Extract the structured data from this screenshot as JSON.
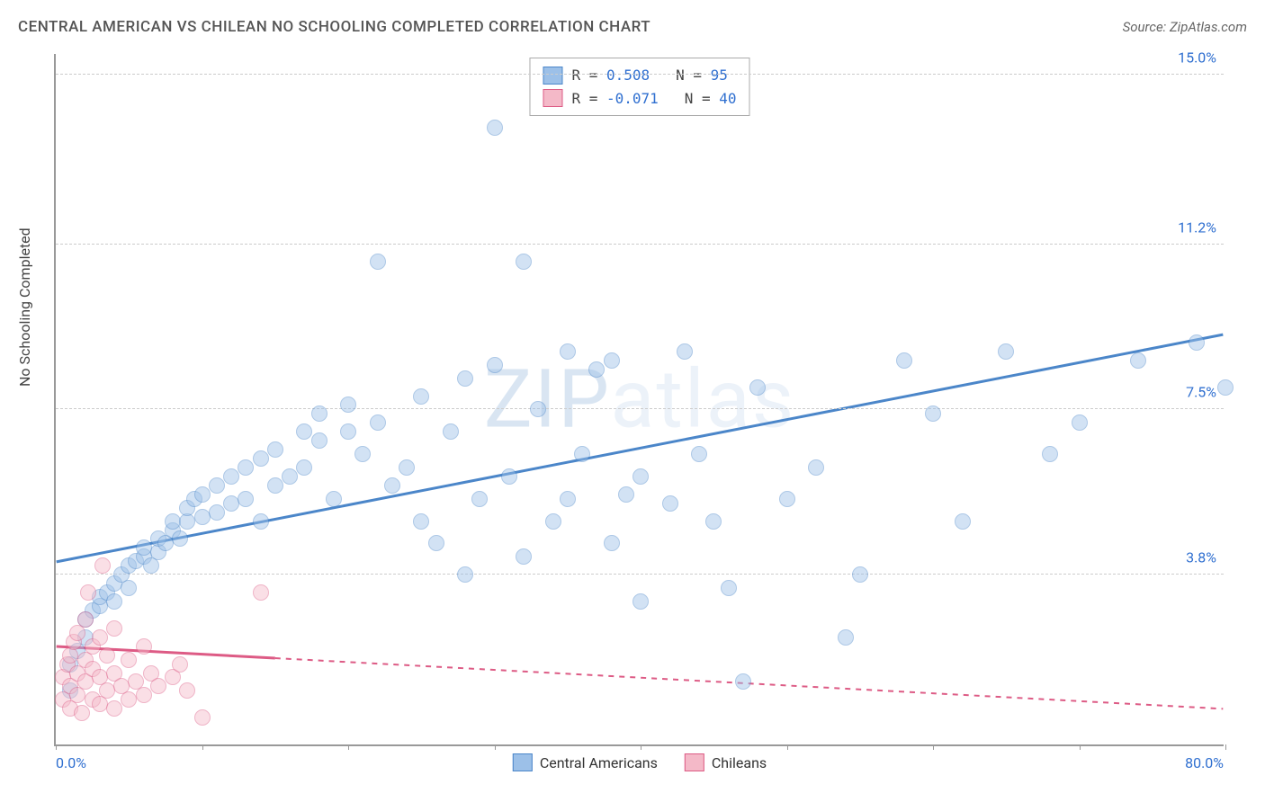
{
  "header": {
    "title": "CENTRAL AMERICAN VS CHILEAN NO SCHOOLING COMPLETED CORRELATION CHART",
    "source": "Source: ZipAtlas.com"
  },
  "chart": {
    "type": "scatter",
    "y_axis_label": "No Schooling Completed",
    "xlim": [
      0,
      80
    ],
    "ylim": [
      0,
      15.5
    ],
    "x_ticks": [
      0,
      10,
      20,
      30,
      40,
      50,
      60,
      70,
      80
    ],
    "y_ticks": [
      3.8,
      7.5,
      11.2,
      15.0
    ],
    "x_left_label": "0.0%",
    "x_right_label": "80.0%",
    "x_label_color": "#2f6fd0",
    "y_tick_color": "#2f6fd0",
    "grid_color": "#cccccc",
    "axis_color": "#999999",
    "background": "#ffffff",
    "marker_radius": 9,
    "marker_opacity": 0.45,
    "watermark_text": "ZIPatlas",
    "watermark_color_strong": "rgba(120,160,210,0.28)",
    "watermark_color_light": "rgba(120,160,210,0.14)",
    "series": [
      {
        "name": "Central Americans",
        "color_fill": "#9cc0e8",
        "color_stroke": "#4b86c9",
        "R": "0.508",
        "N": "95",
        "regression": {
          "x1": 0,
          "y1": 4.1,
          "x2": 80,
          "y2": 9.2,
          "solid_until_x": 80
        },
        "points": [
          [
            1,
            1.2
          ],
          [
            1,
            1.8
          ],
          [
            1.5,
            2.1
          ],
          [
            2,
            2.4
          ],
          [
            2,
            2.8
          ],
          [
            2.5,
            3.0
          ],
          [
            3,
            3.1
          ],
          [
            3,
            3.3
          ],
          [
            3.5,
            3.4
          ],
          [
            4,
            3.2
          ],
          [
            4,
            3.6
          ],
          [
            4.5,
            3.8
          ],
          [
            5,
            3.5
          ],
          [
            5,
            4.0
          ],
          [
            5.5,
            4.1
          ],
          [
            6,
            4.2
          ],
          [
            6,
            4.4
          ],
          [
            6.5,
            4.0
          ],
          [
            7,
            4.3
          ],
          [
            7,
            4.6
          ],
          [
            7.5,
            4.5
          ],
          [
            8,
            4.8
          ],
          [
            8,
            5.0
          ],
          [
            8.5,
            4.6
          ],
          [
            9,
            5.0
          ],
          [
            9,
            5.3
          ],
          [
            9.5,
            5.5
          ],
          [
            10,
            5.1
          ],
          [
            10,
            5.6
          ],
          [
            11,
            5.2
          ],
          [
            11,
            5.8
          ],
          [
            12,
            5.4
          ],
          [
            12,
            6.0
          ],
          [
            13,
            5.5
          ],
          [
            13,
            6.2
          ],
          [
            14,
            5.0
          ],
          [
            14,
            6.4
          ],
          [
            15,
            5.8
          ],
          [
            15,
            6.6
          ],
          [
            16,
            6.0
          ],
          [
            17,
            6.2
          ],
          [
            17,
            7.0
          ],
          [
            18,
            6.8
          ],
          [
            18,
            7.4
          ],
          [
            19,
            5.5
          ],
          [
            20,
            7.0
          ],
          [
            20,
            7.6
          ],
          [
            21,
            6.5
          ],
          [
            22,
            7.2
          ],
          [
            22,
            10.8
          ],
          [
            23,
            5.8
          ],
          [
            24,
            6.2
          ],
          [
            25,
            5.0
          ],
          [
            25,
            7.8
          ],
          [
            26,
            4.5
          ],
          [
            27,
            7.0
          ],
          [
            28,
            8.2
          ],
          [
            28,
            3.8
          ],
          [
            29,
            5.5
          ],
          [
            30,
            8.5
          ],
          [
            30,
            13.8
          ],
          [
            31,
            6.0
          ],
          [
            32,
            10.8
          ],
          [
            32,
            4.2
          ],
          [
            33,
            7.5
          ],
          [
            34,
            5.0
          ],
          [
            35,
            8.8
          ],
          [
            35,
            5.5
          ],
          [
            36,
            6.5
          ],
          [
            37,
            8.4
          ],
          [
            38,
            4.5
          ],
          [
            38,
            8.6
          ],
          [
            39,
            5.6
          ],
          [
            40,
            6.0
          ],
          [
            40,
            3.2
          ],
          [
            42,
            5.4
          ],
          [
            43,
            8.8
          ],
          [
            44,
            6.5
          ],
          [
            45,
            5.0
          ],
          [
            46,
            3.5
          ],
          [
            47,
            1.4
          ],
          [
            48,
            8.0
          ],
          [
            50,
            5.5
          ],
          [
            52,
            6.2
          ],
          [
            54,
            2.4
          ],
          [
            55,
            3.8
          ],
          [
            58,
            8.6
          ],
          [
            60,
            7.4
          ],
          [
            62,
            5.0
          ],
          [
            65,
            8.8
          ],
          [
            68,
            6.5
          ],
          [
            70,
            7.2
          ],
          [
            74,
            8.6
          ],
          [
            78,
            9.0
          ],
          [
            80,
            8.0
          ]
        ]
      },
      {
        "name": "Chileans",
        "color_fill": "#f4b9c8",
        "color_stroke": "#dd5b85",
        "R": "-0.071",
        "N": "40",
        "regression": {
          "x1": 0,
          "y1": 2.2,
          "x2": 80,
          "y2": 0.8,
          "solid_until_x": 15
        },
        "points": [
          [
            0.5,
            1.0
          ],
          [
            0.5,
            1.5
          ],
          [
            0.8,
            1.8
          ],
          [
            1,
            0.8
          ],
          [
            1,
            1.3
          ],
          [
            1,
            2.0
          ],
          [
            1.2,
            2.3
          ],
          [
            1.5,
            1.1
          ],
          [
            1.5,
            1.6
          ],
          [
            1.5,
            2.5
          ],
          [
            1.8,
            0.7
          ],
          [
            2,
            1.4
          ],
          [
            2,
            1.9
          ],
          [
            2,
            2.8
          ],
          [
            2.2,
            3.4
          ],
          [
            2.5,
            1.0
          ],
          [
            2.5,
            1.7
          ],
          [
            2.5,
            2.2
          ],
          [
            3,
            0.9
          ],
          [
            3,
            1.5
          ],
          [
            3,
            2.4
          ],
          [
            3.2,
            4.0
          ],
          [
            3.5,
            1.2
          ],
          [
            3.5,
            2.0
          ],
          [
            4,
            0.8
          ],
          [
            4,
            1.6
          ],
          [
            4,
            2.6
          ],
          [
            4.5,
            1.3
          ],
          [
            5,
            1.0
          ],
          [
            5,
            1.9
          ],
          [
            5.5,
            1.4
          ],
          [
            6,
            1.1
          ],
          [
            6,
            2.2
          ],
          [
            6.5,
            1.6
          ],
          [
            7,
            1.3
          ],
          [
            8,
            1.5
          ],
          [
            8.5,
            1.8
          ],
          [
            9,
            1.2
          ],
          [
            10,
            0.6
          ],
          [
            14,
            3.4
          ]
        ]
      }
    ],
    "legend_bottom": [
      {
        "label": "Central Americans",
        "fill": "#9cc0e8",
        "stroke": "#4b86c9"
      },
      {
        "label": "Chileans",
        "fill": "#f4b9c8",
        "stroke": "#dd5b85"
      }
    ]
  }
}
